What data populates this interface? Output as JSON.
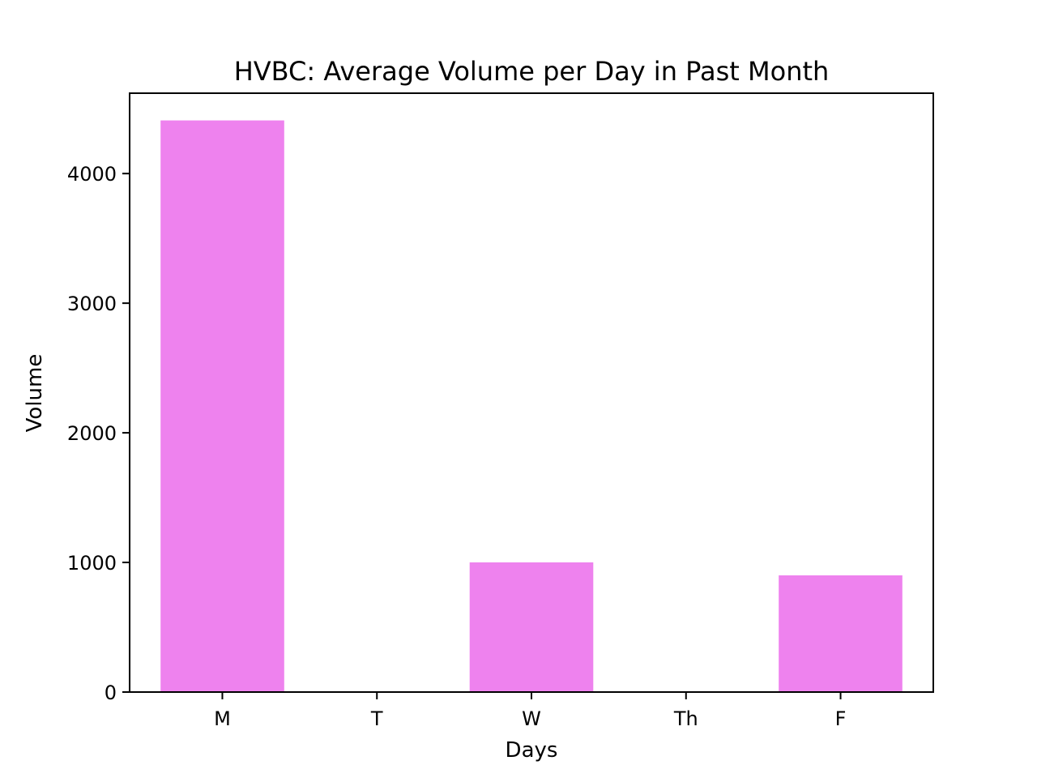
{
  "chart_data": {
    "type": "bar",
    "title": "HVBC: Average Volume per Day in Past Month",
    "xlabel": "Days",
    "ylabel": "Volume",
    "categories": [
      "M",
      "T",
      "W",
      "Th",
      "F"
    ],
    "values": [
      4410,
      0,
      1000,
      0,
      900
    ],
    "ylim": [
      0,
      4620
    ],
    "yticks": [
      0,
      1000,
      2000,
      3000,
      4000
    ],
    "grid": false,
    "legend": "none",
    "bar_color": "#ee82ee"
  }
}
